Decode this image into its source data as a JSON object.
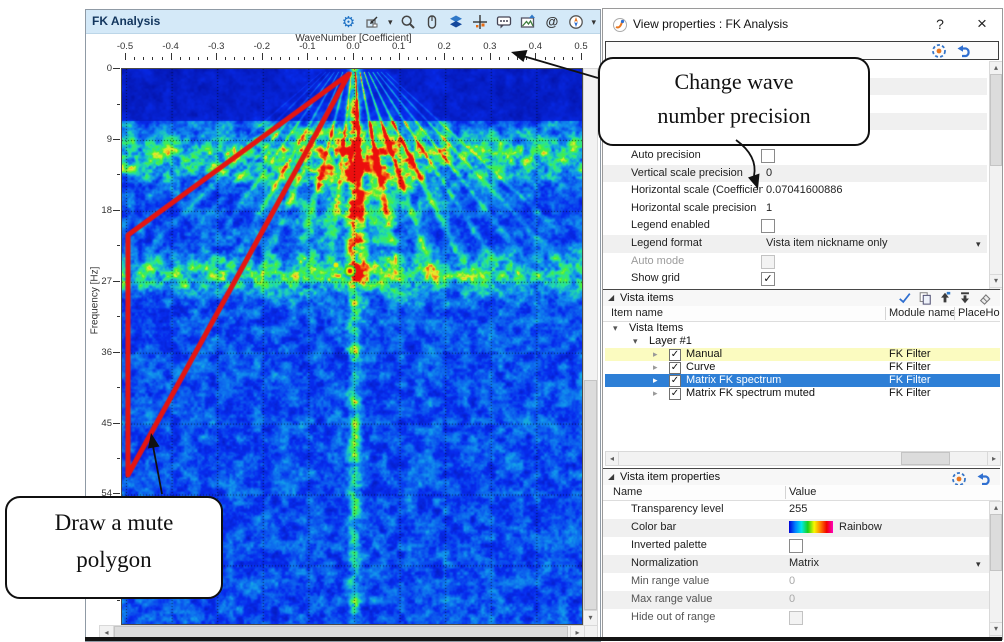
{
  "fk_window": {
    "title": "FK Analysis",
    "toolbar": [
      {
        "name": "settings-gear"
      },
      {
        "name": "fit-view",
        "caret": true
      },
      {
        "name": "zoom-magnifier"
      },
      {
        "name": "mouse-mode"
      },
      {
        "name": "layers"
      },
      {
        "name": "pick-crosshair"
      },
      {
        "name": "comment-bubble"
      },
      {
        "name": "export-image"
      },
      {
        "name": "measure-at"
      },
      {
        "name": "compass",
        "caret": true
      }
    ],
    "x_axis": {
      "label": "WaveNumber [Coefficient]",
      "ticks": [
        "-0.5",
        "-0.4",
        "-0.3",
        "-0.2",
        "-0.1",
        "0.0",
        "0.1",
        "0.2",
        "0.3",
        "0.4",
        "0.5"
      ]
    },
    "y_axis": {
      "label": "Frequency [Hz]",
      "ticks": [
        "0",
        "9",
        "18",
        "27",
        "36",
        "45",
        "54"
      ]
    },
    "grid": {
      "shown": true,
      "style": "dotted"
    },
    "mute_polygon": {
      "color": "#e51511",
      "points_wavenumber_hz": [
        [
          0.0,
          0.0
        ],
        [
          -0.49,
          21.0
        ],
        [
          -0.49,
          51.5
        ]
      ]
    },
    "colormap": "Rainbow"
  },
  "callouts": {
    "wave_precision": {
      "line1": "Change wave",
      "line2": "number precision"
    },
    "mute": {
      "line1": "Draw a mute",
      "line2": "polygon"
    }
  },
  "panel": {
    "title": "View properties : FK Analysis",
    "help_label": "?",
    "close_label": "×",
    "view_props": [
      {
        "name": "Auto precision",
        "type": "checkbox",
        "checked": false
      },
      {
        "name": "Vertical scale precision",
        "value": "0",
        "shade": true
      },
      {
        "name": "Horizontal scale (Coefficien",
        "value": "0.07041600886"
      },
      {
        "name": "Horizontal scale precision",
        "value": "1"
      },
      {
        "name": "Legend enabled",
        "type": "checkbox",
        "checked": false
      },
      {
        "name": "Legend format",
        "value": "Vista item nickname only",
        "dropdown": true,
        "shade": true
      },
      {
        "name": "Auto mode",
        "type": "checkbox",
        "checked": false,
        "disabled": true
      },
      {
        "name": "Show grid",
        "type": "checkbox",
        "checked": true
      }
    ],
    "vista_items": {
      "header": "Vista items",
      "toolbar": [
        "check-blue",
        "copy-items",
        "import-up",
        "insert-down",
        "eraser"
      ],
      "columns": [
        "Item name",
        "Module name",
        "PlaceHo"
      ],
      "tree": [
        {
          "label": "Vista Items",
          "level": 0,
          "expanded": true
        },
        {
          "label": "Layer  #1",
          "level": 1,
          "expanded": true
        },
        {
          "label": "Manual",
          "level": 2,
          "checked": true,
          "module": "FK Filter",
          "highlight": "yellow"
        },
        {
          "label": "Curve",
          "level": 2,
          "checked": true,
          "module": "FK Filter"
        },
        {
          "label": "Matrix FK spectrum",
          "level": 2,
          "checked": true,
          "module": "FK Filter",
          "highlight": "selected"
        },
        {
          "label": "Matrix FK spectrum muted",
          "level": 2,
          "checked": true,
          "module": "FK Filter"
        }
      ]
    },
    "item_props": {
      "header": "Vista item properties",
      "columns": [
        "Name",
        "Value"
      ],
      "rows": [
        {
          "name": "Transparency level",
          "value": "255"
        },
        {
          "name": "Color bar",
          "value": "Rainbow",
          "swatch": true,
          "shade": true
        },
        {
          "name": "Inverted palette",
          "type": "checkbox",
          "checked": false
        },
        {
          "name": "Normalization",
          "value": "Matrix",
          "dropdown": true,
          "shade": true
        },
        {
          "name": "Min range value",
          "value": "0",
          "disabled": true
        },
        {
          "name": "Max range value",
          "value": "0",
          "disabled": true,
          "shade": true
        },
        {
          "name": "Hide out of range",
          "type": "checkbox",
          "checked": false,
          "disabled": true
        }
      ]
    },
    "colors": {
      "selected_row": "#2e7fd6",
      "yellow_row": "#fbfbc0",
      "accent_blue": "#2f6fd0",
      "accent_orange": "#e87720"
    }
  }
}
